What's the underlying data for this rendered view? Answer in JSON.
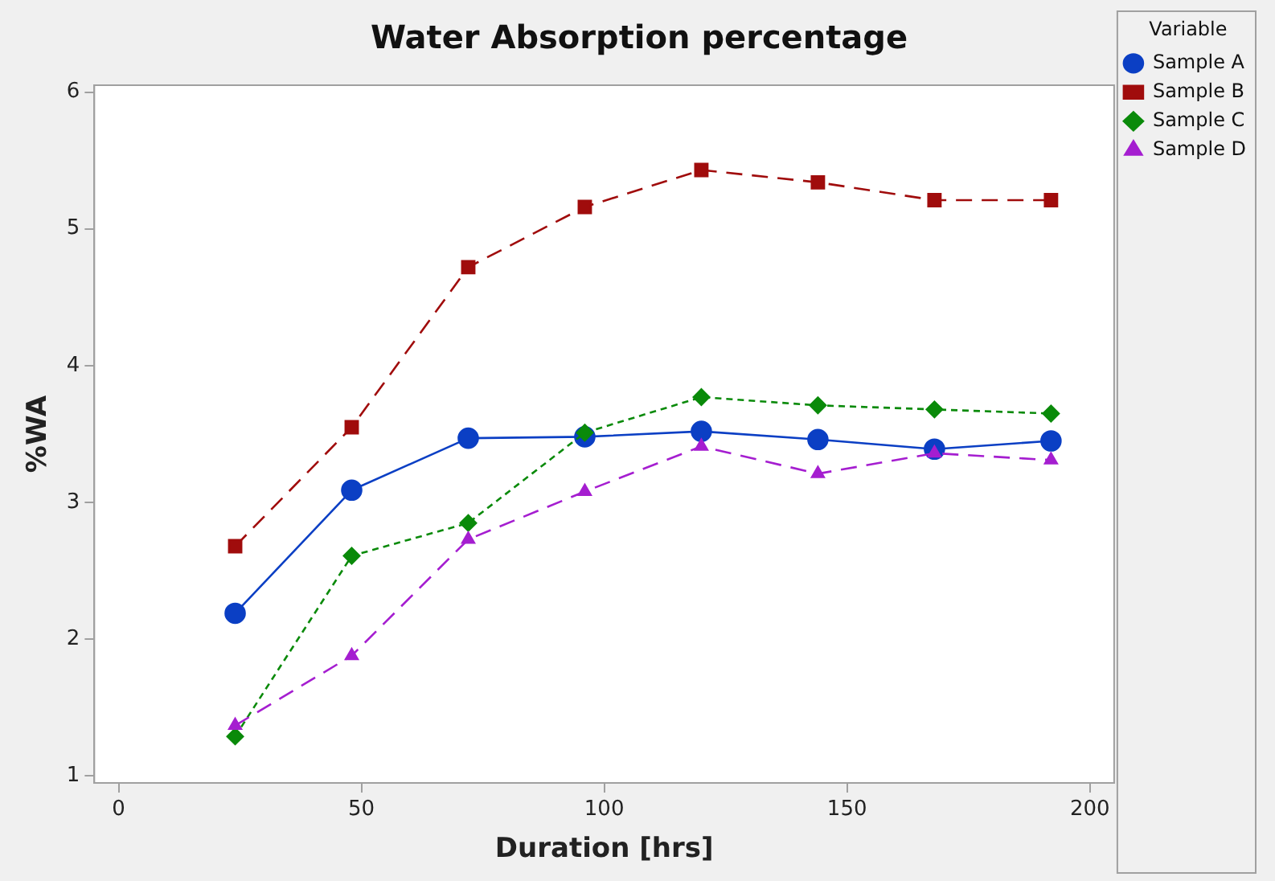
{
  "chart_data": {
    "type": "line",
    "title": "Water Absorption percentage",
    "xlabel": "Duration [hrs]",
    "ylabel": "%WA",
    "legend_title": "Variable",
    "legend": "right",
    "x": [
      24,
      48,
      72,
      96,
      120,
      144,
      168,
      192
    ],
    "series": [
      {
        "name": "Sample A",
        "color": "#0b3fc4",
        "marker": "circle",
        "line_style": "solid",
        "values": [
          2.19,
          3.09,
          3.47,
          3.48,
          3.52,
          3.46,
          3.39,
          3.45
        ]
      },
      {
        "name": "Sample B",
        "color": "#a00c0c",
        "marker": "square",
        "line_style": "dashed",
        "values": [
          2.68,
          3.55,
          4.72,
          5.16,
          5.43,
          5.34,
          5.21,
          5.21
        ]
      },
      {
        "name": "Sample C",
        "color": "#0a8a0a",
        "marker": "diamond",
        "line_style": "dotted",
        "values": [
          1.29,
          2.61,
          2.85,
          3.51,
          3.77,
          3.71,
          3.68,
          3.65
        ]
      },
      {
        "name": "Sample D",
        "color": "#a51ed0",
        "marker": "triangle",
        "line_style": "dashed",
        "values": [
          1.37,
          1.88,
          2.73,
          3.08,
          3.41,
          3.21,
          3.36,
          3.31
        ]
      }
    ],
    "xlim": [
      -5,
      205
    ],
    "xticks": [
      0,
      50,
      100,
      150,
      200
    ],
    "ylim": [
      0.95,
      6.05
    ],
    "yticks": [
      1,
      2,
      3,
      4,
      5,
      6
    ],
    "grid": false
  }
}
